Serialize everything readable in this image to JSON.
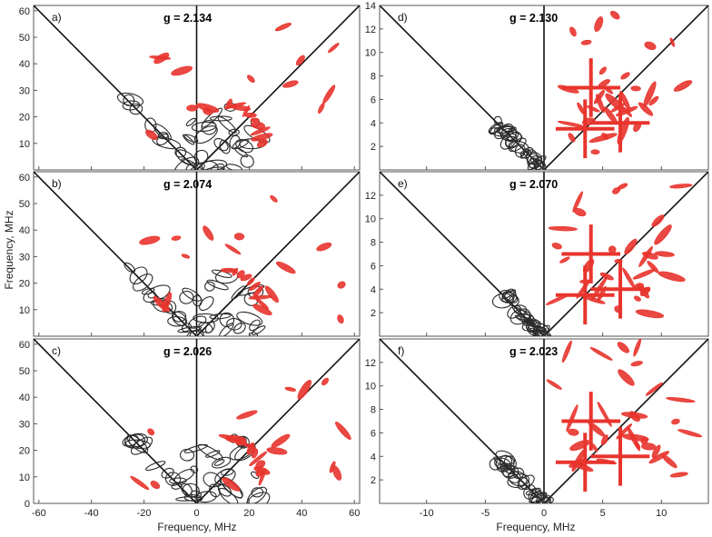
{
  "figure": {
    "ylabel": "Frequency, MHz",
    "xlabel": "Frequency, MHz",
    "colors": {
      "experiment": "#2b2b2b",
      "simulation": "#e8342d",
      "frame": "#555555"
    }
  },
  "chart_data": [
    {
      "panel": "a)",
      "g_label": "g = 2.134",
      "type": "contour",
      "xlim": [
        -62,
        62
      ],
      "ylim": [
        0,
        62
      ],
      "xticks": [
        -60,
        -40,
        -20,
        0,
        20,
        40,
        60
      ],
      "yticks": [
        10,
        20,
        30,
        40,
        50,
        60
      ],
      "xticks_labeled": false
    },
    {
      "panel": "b)",
      "g_label": "g = 2.074",
      "type": "contour",
      "xlim": [
        -62,
        62
      ],
      "ylim": [
        0,
        62
      ],
      "xticks": [
        -60,
        -40,
        -20,
        0,
        20,
        40,
        60
      ],
      "yticks": [
        10,
        20,
        30,
        40,
        50,
        60
      ],
      "xticks_labeled": false
    },
    {
      "panel": "c)",
      "g_label": "g = 2.026",
      "type": "contour",
      "xlim": [
        -62,
        62
      ],
      "ylim": [
        0,
        62
      ],
      "xticks": [
        -60,
        -40,
        -20,
        0,
        20,
        40,
        60
      ],
      "yticks": [
        0,
        10,
        20,
        30,
        40,
        50,
        60
      ],
      "xticks_labeled": true
    },
    {
      "panel": "d)",
      "g_label": "g = 2.130",
      "type": "contour",
      "xlim": [
        -14,
        14
      ],
      "ylim": [
        0,
        14
      ],
      "xticks": [
        -10,
        -5,
        0,
        5,
        10
      ],
      "yticks": [
        2,
        4,
        6,
        8,
        10,
        12,
        14
      ],
      "xticks_labeled": false
    },
    {
      "panel": "e)",
      "g_label": "g = 2.070",
      "type": "contour",
      "xlim": [
        -14,
        14
      ],
      "ylim": [
        0,
        14
      ],
      "xticks": [
        -10,
        -5,
        0,
        5,
        10
      ],
      "yticks": [
        2,
        4,
        6,
        8,
        10,
        12
      ],
      "xticks_labeled": false
    },
    {
      "panel": "f)",
      "g_label": "g = 2.023",
      "type": "contour",
      "xlim": [
        -14,
        14
      ],
      "ylim": [
        0,
        14
      ],
      "xticks": [
        -10,
        -5,
        0,
        5,
        10
      ],
      "yticks": [
        2,
        4,
        6,
        8,
        10,
        12
      ],
      "xticks_labeled": true
    }
  ]
}
